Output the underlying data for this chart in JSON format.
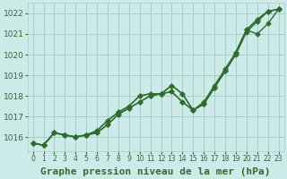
{
  "title": "Graphe pression niveau de la mer (hPa)",
  "bg_color": "#cceae8",
  "grid_color": "#aacccc",
  "line_color": "#2d6e2d",
  "xlim": [
    -0.5,
    23.5
  ],
  "ylim": [
    1015.3,
    1022.5
  ],
  "yticks": [
    1016,
    1017,
    1018,
    1019,
    1020,
    1021,
    1022
  ],
  "xticks": [
    0,
    1,
    2,
    3,
    4,
    5,
    6,
    7,
    8,
    9,
    10,
    11,
    12,
    13,
    14,
    15,
    16,
    17,
    18,
    19,
    20,
    21,
    22,
    23
  ],
  "series": [
    [
      1015.7,
      1015.6,
      1016.2,
      1016.1,
      1016.0,
      1016.1,
      1016.2,
      1016.6,
      1017.1,
      1017.4,
      1017.7,
      1018.0,
      1018.1,
      1018.2,
      1017.7,
      1017.3,
      1017.6,
      1018.4,
      1019.2,
      1020.0,
      1021.1,
      1021.6,
      1022.1,
      1022.2
    ],
    [
      1015.7,
      1015.6,
      1016.2,
      1016.1,
      1016.0,
      1016.1,
      1016.2,
      1016.6,
      1017.1,
      1017.4,
      1017.7,
      1018.0,
      1018.1,
      1018.2,
      1017.7,
      1017.3,
      1017.7,
      1018.5,
      1019.3,
      1020.1,
      1021.2,
      1021.7,
      1022.1,
      1022.2
    ],
    [
      1015.7,
      1015.6,
      1016.2,
      1016.1,
      1016.0,
      1016.1,
      1016.3,
      1016.8,
      1017.2,
      1017.5,
      1018.0,
      1018.1,
      1018.1,
      1018.5,
      1018.1,
      1017.3,
      1017.6,
      1018.4,
      1019.2,
      1020.1,
      1021.2,
      1021.7,
      1022.1,
      1022.2
    ],
    [
      1015.7,
      1015.6,
      1016.2,
      1016.1,
      1016.0,
      1016.1,
      1016.3,
      1016.8,
      1017.2,
      1017.5,
      1018.0,
      1018.1,
      1018.1,
      1018.5,
      1018.1,
      1017.3,
      1017.6,
      1018.4,
      1019.2,
      1020.1,
      1021.2,
      1021.0,
      1021.5,
      1022.2
    ]
  ],
  "marker": "D",
  "markersize": 2.5,
  "linewidth": 1.0,
  "title_fontsize": 8,
  "tick_fontsize": 5.5,
  "ylabel_fontsize": 6.5
}
